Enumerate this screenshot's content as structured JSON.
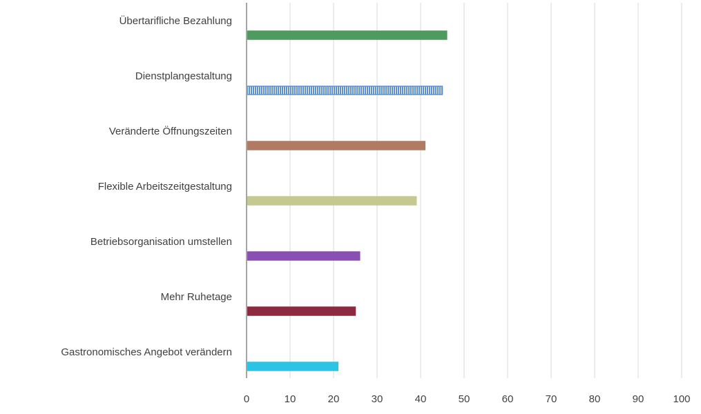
{
  "chart_data": {
    "type": "bar",
    "orientation": "horizontal",
    "categories": [
      "Übertarifliche Bezahlung",
      "Dienstplangestaltung",
      "Veränderte Öffnungszeiten",
      "Flexible Arbeitszeitgestaltung",
      "Betriebsorganisation umstellen",
      "Mehr Ruhetage",
      "Gastronomisches Angebot verändern"
    ],
    "values": [
      46,
      45,
      41,
      39,
      26,
      25,
      21
    ],
    "colors": [
      "#4f9a5f",
      "#5b8fd0",
      "#b07a63",
      "#c6c98f",
      "#8a4fb3",
      "#8e2a3f",
      "#2cc4e4"
    ],
    "patterns": [
      "solid",
      "vertical-stripes",
      "solid",
      "solid",
      "solid",
      "solid",
      "solid"
    ],
    "xlim": [
      0,
      100
    ],
    "xticks": [
      0,
      10,
      20,
      30,
      40,
      50,
      60,
      70,
      80,
      90,
      100
    ],
    "grid": true,
    "title": "",
    "xlabel": "",
    "ylabel": ""
  }
}
